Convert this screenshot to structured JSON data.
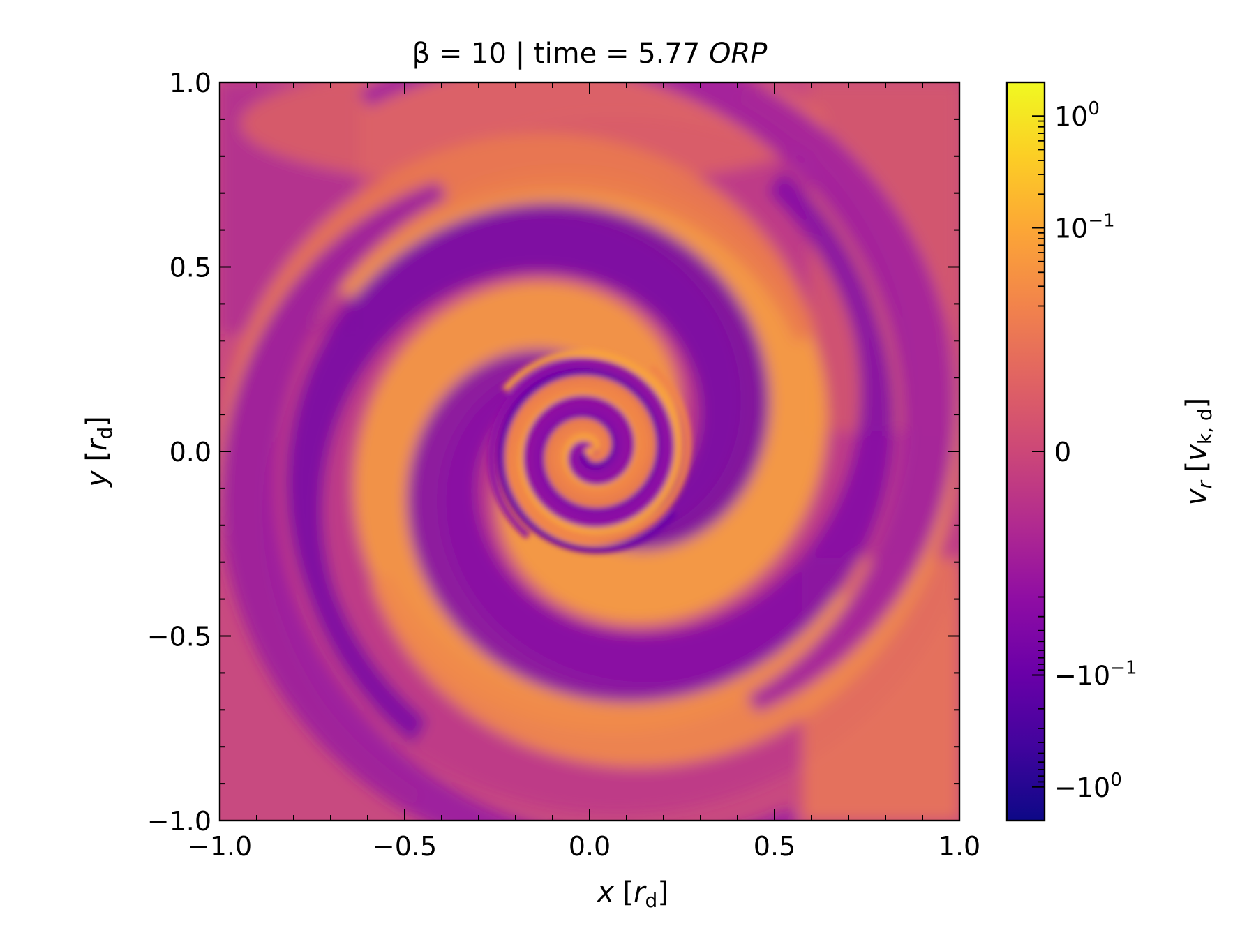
{
  "chart_data": {
    "type": "heatmap",
    "title": {
      "prefix": "β = 10 | time = 5.77 ",
      "italic": "ORP"
    },
    "xlabel": {
      "var": "x",
      "unit_open": " [",
      "unit_var": "r",
      "unit_sub": "d",
      "unit_close": "]"
    },
    "ylabel": {
      "var": "y",
      "unit_open": " [",
      "unit_var": "r",
      "unit_sub": "d",
      "unit_close": "]"
    },
    "xlim": [
      -1.0,
      1.0
    ],
    "ylim": [
      -1.0,
      1.0
    ],
    "xticks": [
      -1.0,
      -0.5,
      0.0,
      0.5,
      1.0
    ],
    "xtick_labels": [
      "−1.0",
      "−0.5",
      "0.0",
      "0.5",
      "1.0"
    ],
    "yticks": [
      -1.0,
      -0.5,
      0.0,
      0.5,
      1.0
    ],
    "ytick_labels": [
      "−1.0",
      "−0.5",
      "0.0",
      "0.5",
      "1.0"
    ],
    "colormap": "plasma",
    "colorbar": {
      "scale": "symlog",
      "linthresh": 0.01,
      "range": [
        -2.0,
        2.0
      ],
      "label": {
        "var": "v",
        "var_sub": "r",
        "unit_open": " [",
        "unit_var": "v",
        "unit_sub": "k, d",
        "unit_close": "]"
      },
      "ticks": [
        {
          "value": 1.0,
          "base": "10",
          "exp": "0"
        },
        {
          "value": 0.1,
          "base": "10",
          "exp": "−1"
        },
        {
          "value": 0.0,
          "base": "0",
          "exp": ""
        },
        {
          "value": -0.1,
          "base": "−10",
          "exp": "−1"
        },
        {
          "value": -1.0,
          "base": "−10",
          "exp": "0"
        }
      ]
    },
    "field_description_values": {
      "spiral_arms": 2,
      "inner_spiral_turns": 4,
      "grid": false
    }
  }
}
